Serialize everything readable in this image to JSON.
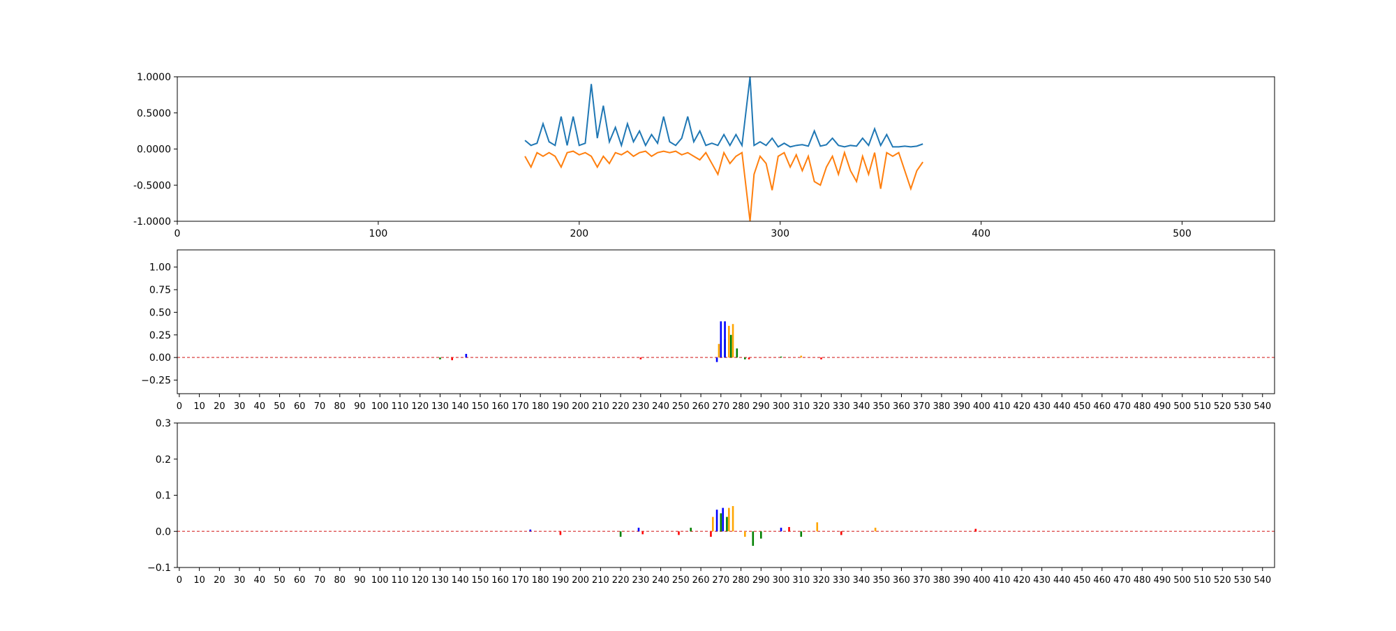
{
  "chart_data": [
    {
      "type": "line",
      "xlim": [
        0,
        546
      ],
      "ylim": [
        -1,
        1
      ],
      "xticks": [
        0,
        100,
        200,
        300,
        400,
        500
      ],
      "yticks": [
        {
          "value": 1,
          "label": "1.0000"
        },
        {
          "value": 0.5,
          "label": "0.5000"
        },
        {
          "value": 0,
          "label": "0.0000"
        },
        {
          "value": -0.5,
          "label": "-0.5000"
        },
        {
          "value": -1,
          "label": "-1.0000"
        }
      ],
      "x": [
        173,
        176,
        179,
        182,
        185,
        188,
        191,
        194,
        197,
        200,
        203,
        206,
        209,
        212,
        215,
        218,
        221,
        224,
        227,
        230,
        233,
        236,
        239,
        242,
        245,
        248,
        251,
        254,
        257,
        260,
        263,
        266,
        269,
        272,
        275,
        278,
        281,
        285,
        287,
        290,
        293,
        296,
        299,
        302,
        305,
        308,
        311,
        314,
        317,
        320,
        323,
        326,
        329,
        332,
        335,
        338,
        341,
        344,
        347,
        350,
        353,
        356,
        359,
        362,
        365,
        368,
        371
      ],
      "series": [
        {
          "color": "#1f77b4",
          "values": [
            0.12,
            0.05,
            0.08,
            0.35,
            0.1,
            0.05,
            0.45,
            0.05,
            0.45,
            0.05,
            0.08,
            0.9,
            0.15,
            0.6,
            0.1,
            0.3,
            0.05,
            0.35,
            0.1,
            0.25,
            0.05,
            0.2,
            0.08,
            0.45,
            0.1,
            0.05,
            0.15,
            0.45,
            0.1,
            0.25,
            0.05,
            0.08,
            0.05,
            0.2,
            0.05,
            0.2,
            0.05,
            1.0,
            0.05,
            0.1,
            0.05,
            0.15,
            0.03,
            0.08,
            0.03,
            0.05,
            0.06,
            0.04,
            0.25,
            0.04,
            0.06,
            0.15,
            0.05,
            0.03,
            0.05,
            0.04,
            0.15,
            0.05,
            0.28,
            0.05,
            0.2,
            0.03,
            0.03,
            0.04,
            0.03,
            0.04,
            0.07
          ]
        },
        {
          "color": "#ff7f0e",
          "values": [
            -0.1,
            -0.25,
            -0.05,
            -0.1,
            -0.05,
            -0.1,
            -0.25,
            -0.05,
            -0.03,
            -0.08,
            -0.05,
            -0.1,
            -0.25,
            -0.1,
            -0.2,
            -0.05,
            -0.08,
            -0.03,
            -0.1,
            -0.05,
            -0.03,
            -0.1,
            -0.05,
            -0.03,
            -0.05,
            -0.03,
            -0.08,
            -0.05,
            -0.1,
            -0.15,
            -0.05,
            -0.2,
            -0.35,
            -0.05,
            -0.2,
            -0.1,
            -0.05,
            -1.0,
            -0.35,
            -0.1,
            -0.2,
            -0.57,
            -0.1,
            -0.05,
            -0.25,
            -0.08,
            -0.3,
            -0.1,
            -0.45,
            -0.5,
            -0.25,
            -0.1,
            -0.35,
            -0.05,
            -0.3,
            -0.45,
            -0.1,
            -0.35,
            -0.05,
            -0.55,
            -0.05,
            -0.1,
            -0.05,
            -0.3,
            -0.55,
            -0.3,
            -0.18
          ]
        }
      ]
    },
    {
      "type": "bar",
      "xlim": [
        -1,
        546
      ],
      "ylim": [
        -0.4,
        1.19
      ],
      "xticks": [
        0,
        10,
        20,
        30,
        40,
        50,
        60,
        70,
        80,
        90,
        100,
        110,
        120,
        130,
        140,
        150,
        160,
        170,
        180,
        190,
        200,
        210,
        220,
        230,
        240,
        250,
        260,
        270,
        280,
        290,
        300,
        310,
        320,
        330,
        340,
        350,
        360,
        370,
        380,
        390,
        400,
        410,
        420,
        430,
        440,
        450,
        460,
        470,
        480,
        490,
        500,
        510,
        520,
        530,
        540
      ],
      "yticks": [
        {
          "value": -0.25,
          "label": "−0.25"
        },
        {
          "value": 0,
          "label": "0.00"
        },
        {
          "value": 0.25,
          "label": "0.25"
        },
        {
          "value": 0.5,
          "label": "0.50"
        },
        {
          "value": 0.75,
          "label": "0.75"
        },
        {
          "value": 1,
          "label": "1.00"
        }
      ],
      "series": [
        {
          "color": "#008000",
          "x": [
            130,
            272,
            275,
            278,
            282,
            300
          ],
          "values": [
            -0.02,
            0.2,
            0.25,
            0.1,
            -0.02,
            0.01
          ]
        },
        {
          "color": "#0000ff",
          "x": [
            143,
            268,
            270,
            272
          ],
          "values": [
            0.04,
            -0.05,
            0.4,
            0.4
          ]
        },
        {
          "color": "#ffa500",
          "x": [
            269,
            274,
            276,
            310
          ],
          "values": [
            0.15,
            0.35,
            0.37,
            0.02
          ]
        },
        {
          "color": "#ff0000",
          "x": [
            136,
            230,
            284,
            320
          ],
          "values": [
            -0.03,
            -0.02,
            -0.02,
            -0.02
          ]
        }
      ]
    },
    {
      "type": "bar",
      "xlim": [
        -1,
        546
      ],
      "ylim": [
        -0.1,
        0.3
      ],
      "xticks": [
        0,
        10,
        20,
        30,
        40,
        50,
        60,
        70,
        80,
        90,
        100,
        110,
        120,
        130,
        140,
        150,
        160,
        170,
        180,
        190,
        200,
        210,
        220,
        230,
        240,
        250,
        260,
        270,
        280,
        290,
        300,
        310,
        320,
        330,
        340,
        350,
        360,
        370,
        380,
        390,
        400,
        410,
        420,
        430,
        440,
        450,
        460,
        470,
        480,
        490,
        500,
        510,
        520,
        530,
        540
      ],
      "yticks": [
        {
          "value": -0.1,
          "label": "−0.1"
        },
        {
          "value": 0,
          "label": "0.0"
        },
        {
          "value": 0.1,
          "label": "0.1"
        },
        {
          "value": 0.2,
          "label": "0.2"
        },
        {
          "value": 0.3,
          "label": "0.3"
        }
      ],
      "series": [
        {
          "color": "#008000",
          "x": [
            220,
            255,
            270,
            273,
            286,
            290,
            310,
            330
          ],
          "values": [
            -0.015,
            0.01,
            0.05,
            0.04,
            -0.04,
            -0.02,
            -0.015,
            -0.01
          ]
        },
        {
          "color": "#0000ff",
          "x": [
            175,
            229,
            268,
            271,
            300
          ],
          "values": [
            0.005,
            0.01,
            0.06,
            0.065,
            0.01
          ]
        },
        {
          "color": "#ffa500",
          "x": [
            266,
            274,
            276,
            282,
            318,
            347
          ],
          "values": [
            0.04,
            0.065,
            0.07,
            -0.015,
            0.025,
            0.01
          ]
        },
        {
          "color": "#ff0000",
          "x": [
            190,
            231,
            249,
            265,
            304,
            330,
            397
          ],
          "values": [
            -0.01,
            -0.008,
            -0.01,
            -0.015,
            0.012,
            -0.01,
            0.007
          ]
        }
      ]
    }
  ]
}
